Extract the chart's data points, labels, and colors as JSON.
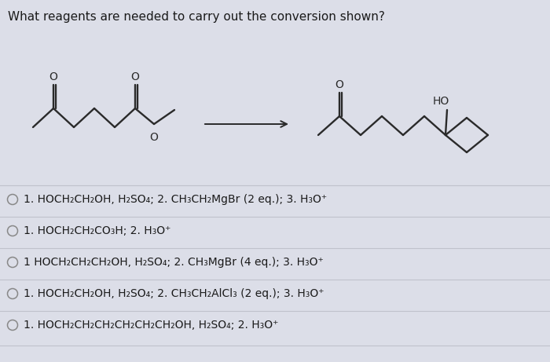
{
  "title": "What reagents are needed to carry out the conversion shown?",
  "title_fontsize": 11,
  "background_color": "#dcdee8",
  "options": [
    "1. HOCH₂CH₂OH, H₂SO₄; 2. CH₃CH₂MgBr (2 eq.); 3. H₃O⁺",
    "1. HOCH₂CH₂CO₃H; 2. H₃O⁺",
    "1 HOCH₂CH₂CH₂OH, H₂SO₄; 2. CH₃MgBr (4 eq.); 3. H₃O⁺",
    "1. HOCH₂CH₂OH, H₂SO₄; 2. CH₃CH₂AlCl₃ (2 eq.); 3. H₃O⁺",
    "1. HOCH₂CH₂CH₂CH₂CH₂CH₂OH, H₂SO₄; 2. H₃O⁺"
  ],
  "option_fontsize": 10,
  "text_color": "#1a1a1a",
  "radio_color": "#888888",
  "line_color": "#b8bac8",
  "bond_color": "#2a2a2a",
  "bond_lw": 1.7,
  "arrow_color": "#2a2a2a",
  "o_fontsize": 10,
  "ho_fontsize": 10,
  "opt_y": [
    252,
    292,
    332,
    372,
    412
  ],
  "opt_line_color": "#c0c2cc"
}
